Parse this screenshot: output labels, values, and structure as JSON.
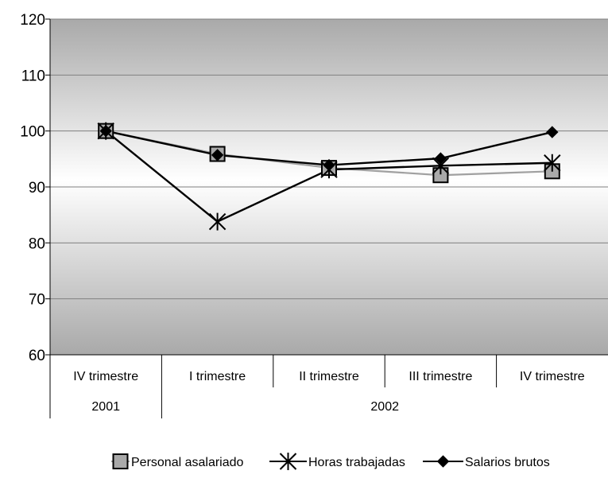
{
  "chart_data": {
    "type": "line",
    "categories": [
      "IV trimestre",
      "I trimestre",
      "II trimestre",
      "III trimestre",
      "IV trimestre"
    ],
    "groups": [
      {
        "label": "2001",
        "count": 1
      },
      {
        "label": "2002",
        "count": 4
      }
    ],
    "series": [
      {
        "name": "Personal asalariado",
        "values": [
          100,
          95.9,
          93.4,
          92.1,
          92.8
        ],
        "color": "#a0a0a0",
        "marker": "square"
      },
      {
        "name": "Horas trabajadas",
        "values": [
          100,
          83.8,
          93.1,
          93.8,
          94.3
        ],
        "color": "#000000",
        "marker": "asterisk"
      },
      {
        "name": "Salarios brutos",
        "values": [
          100,
          95.7,
          93.9,
          95.1,
          99.8
        ],
        "color": "#000000",
        "marker": "diamond"
      }
    ],
    "yticks": [
      60,
      70,
      80,
      90,
      100,
      110,
      120
    ],
    "ylim": [
      60,
      120
    ],
    "grid": true,
    "legend_position": "bottom"
  }
}
